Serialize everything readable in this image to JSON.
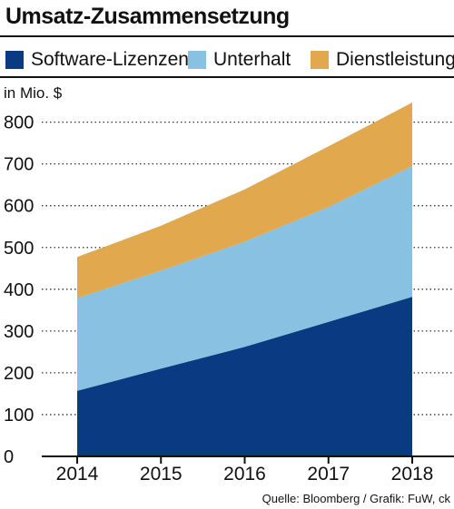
{
  "chart_data": {
    "type": "area",
    "stacked": true,
    "title": "Umsatz-Zusammensetzung",
    "ylabel": "in Mio. $",
    "xlabel": "",
    "categories": [
      "2014",
      "2015",
      "2016",
      "2017",
      "2018"
    ],
    "ylim": [
      0,
      840
    ],
    "yticks": [
      0,
      100,
      200,
      300,
      400,
      500,
      600,
      700,
      800
    ],
    "grid": "horizontal dotted",
    "legend_position": "top",
    "series": [
      {
        "name": "Software-Lizenzen",
        "color": "#0a3a82",
        "values": [
          157,
          210,
          262,
          322,
          382
        ]
      },
      {
        "name": "Unterhalt",
        "color": "#88c1e2",
        "values": [
          222,
          235,
          252,
          275,
          313
        ]
      },
      {
        "name": "Dienstleistungen",
        "color": "#e1a84d",
        "values": [
          98,
          107,
          125,
          145,
          152
        ]
      }
    ],
    "source": "Quelle: Bloomberg / Grafik: FuW, ck"
  }
}
